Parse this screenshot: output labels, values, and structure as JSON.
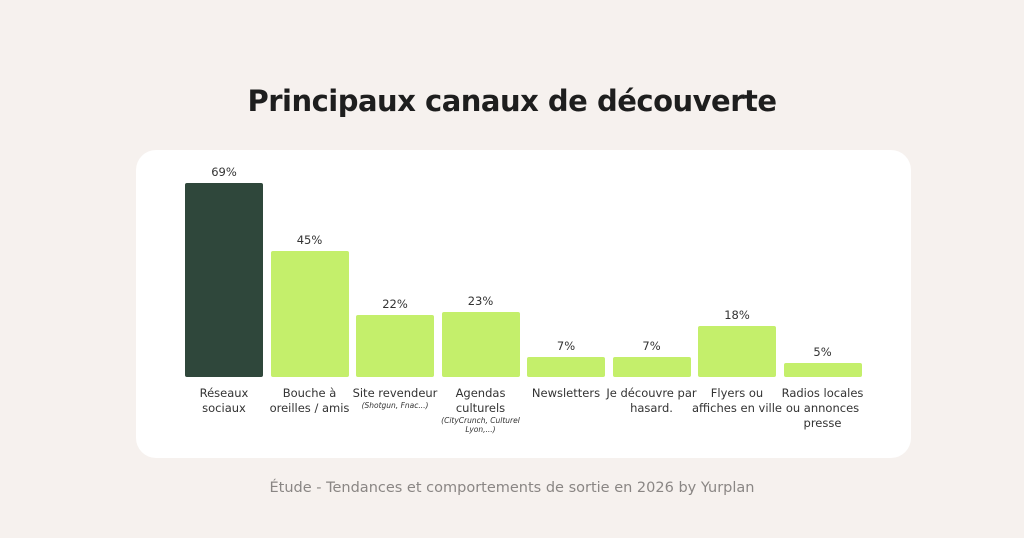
{
  "chart_data": {
    "type": "bar",
    "title": "Principaux canaux de découverte",
    "caption": "Étude - Tendances et comportements de sortie en 2026 by Yurplan",
    "categories": [
      "Réseaux sociaux",
      "Bouche à oreilles / amis",
      "Site revendeur",
      "Agendas culturels",
      "Newsletters",
      "Je découvre par hasard.",
      "Flyers ou affiches en ville",
      "Radios locales ou annonces presse"
    ],
    "category_notes": [
      null,
      null,
      "(Shotgun, Fnac...)",
      "(CityCrunch, Culturel Lyon,...)",
      null,
      null,
      null,
      null
    ],
    "values": [
      69,
      45,
      22,
      23,
      7,
      7,
      18,
      5
    ],
    "value_labels": [
      "69%",
      "45%",
      "22%",
      "23%",
      "7%",
      "7%",
      "18%",
      "5%"
    ],
    "colors": [
      "#2f473b",
      "#c4ef6b",
      "#c4ef6b",
      "#c4ef6b",
      "#c4ef6b",
      "#c4ef6b",
      "#c4ef6b",
      "#c4ef6b"
    ]
  }
}
